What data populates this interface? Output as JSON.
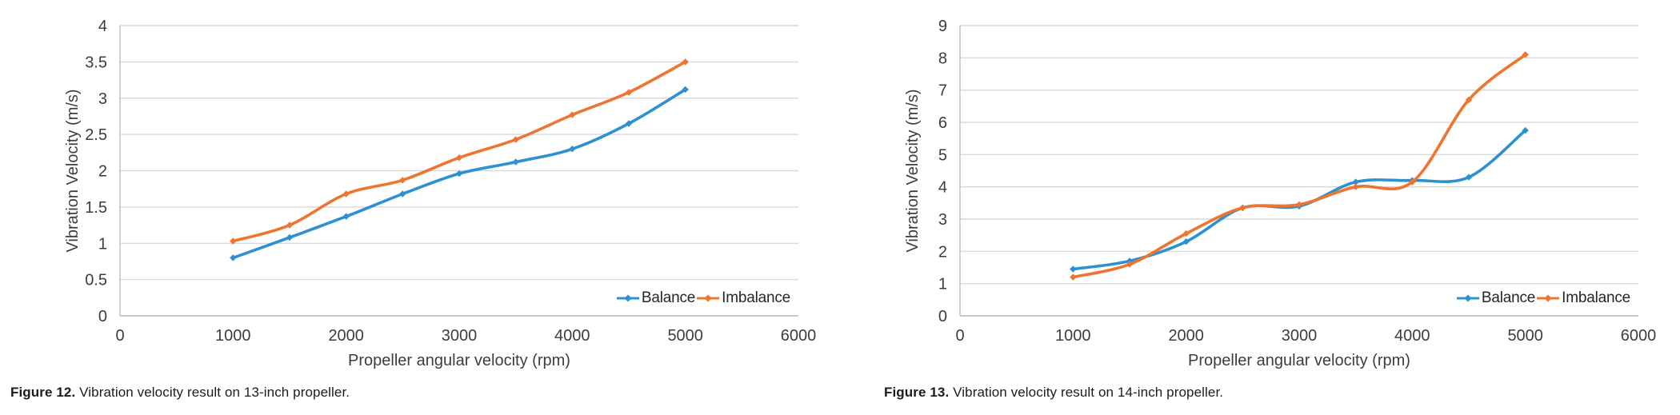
{
  "chart_data": [
    {
      "type": "line",
      "title": "",
      "xlabel": "Propeller angular velocity (rpm)",
      "ylabel": "Vibration Velocity (m/s)",
      "xlim": [
        0,
        6000
      ],
      "ylim": [
        0,
        4
      ],
      "grid": "horizontal",
      "legend_position": "bottom-right-inside",
      "x_ticks": [
        0,
        1000,
        2000,
        3000,
        4000,
        5000,
        6000
      ],
      "x_tick_labels": [
        "0",
        "1000",
        "2000",
        "3000",
        "4000",
        "5000",
        "6000"
      ],
      "y_ticks": [
        0,
        0.5,
        1,
        1.5,
        2,
        2.5,
        3,
        3.5,
        4
      ],
      "y_tick_labels": [
        "0",
        "0.5",
        "1",
        "1.5",
        "2",
        "2.5",
        "3",
        "3.5",
        "4"
      ],
      "x": [
        1000,
        1500,
        2000,
        2500,
        3000,
        3500,
        4000,
        4500,
        5000
      ],
      "series": [
        {
          "name": "Balance",
          "color": "#2E91CF",
          "values": [
            0.8,
            1.08,
            1.37,
            1.68,
            1.96,
            2.12,
            2.3,
            2.65,
            3.12
          ]
        },
        {
          "name": "Imbalance",
          "color": "#EE752F",
          "values": [
            1.03,
            1.25,
            1.68,
            1.87,
            2.18,
            2.43,
            2.77,
            3.08,
            3.5
          ]
        }
      ],
      "caption_label": "Figure 12.",
      "caption_text": "Vibration velocity result on 13-inch propeller."
    },
    {
      "type": "line",
      "title": "",
      "xlabel": "Propeller angular velocity (rpm)",
      "ylabel": "Vibration Velocity (m/s)",
      "xlim": [
        0,
        6000
      ],
      "ylim": [
        0,
        9
      ],
      "grid": "horizontal",
      "legend_position": "bottom-right-inside",
      "x_ticks": [
        0,
        1000,
        2000,
        3000,
        4000,
        5000,
        6000
      ],
      "x_tick_labels": [
        "0",
        "1000",
        "2000",
        "3000",
        "4000",
        "5000",
        "6000"
      ],
      "y_ticks": [
        0,
        1,
        2,
        3,
        4,
        5,
        6,
        7,
        8,
        9
      ],
      "y_tick_labels": [
        "0",
        "1",
        "2",
        "3",
        "4",
        "5",
        "6",
        "7",
        "8",
        "9"
      ],
      "x": [
        1000,
        1500,
        2000,
        2500,
        3000,
        3500,
        4000,
        4500,
        5000
      ],
      "series": [
        {
          "name": "Balance",
          "color": "#2E91CF",
          "values": [
            1.45,
            1.7,
            2.3,
            3.35,
            3.4,
            4.15,
            4.2,
            4.3,
            5.75
          ]
        },
        {
          "name": "Imbalance",
          "color": "#EE752F",
          "values": [
            1.2,
            1.6,
            2.55,
            3.35,
            3.45,
            4.0,
            4.15,
            6.7,
            8.1
          ]
        }
      ],
      "caption_label": "Figure 13.",
      "caption_text": "Vibration velocity result on 14-inch propeller."
    }
  ],
  "style": {
    "gridline_color": "#d9d9d9",
    "axis_line_color": "#bfbfbf",
    "tick_text_color": "#3d3d3d"
  }
}
